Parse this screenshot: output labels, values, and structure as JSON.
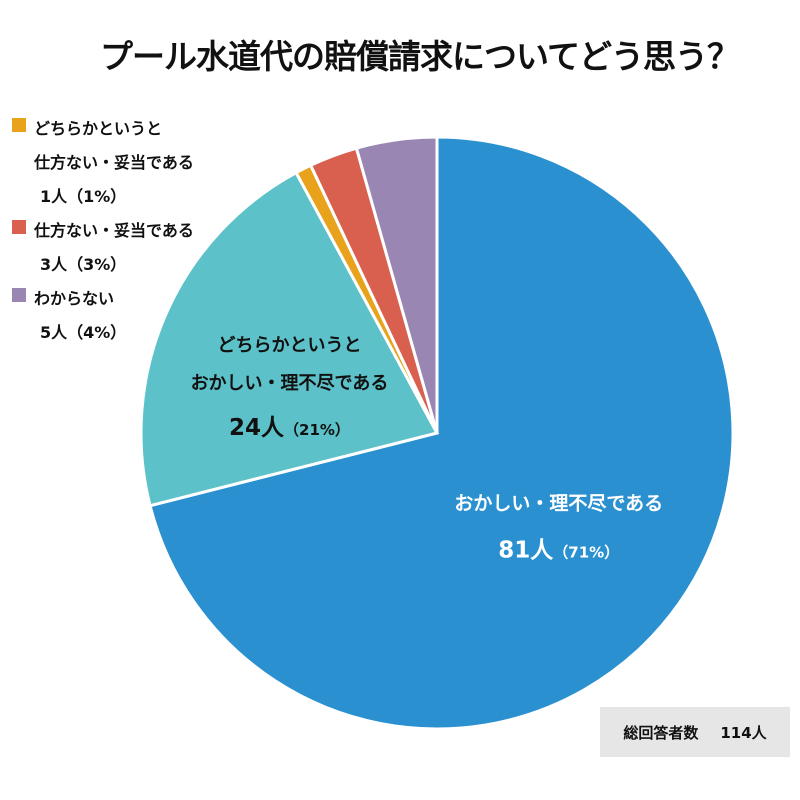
{
  "chart_data": {
    "type": "pie",
    "title": "プール水道代の賠償請求についてどう思う？",
    "slices": [
      {
        "label": "おかしい・理不尽である",
        "count_text": "81人",
        "percent_text": "（71%）",
        "value": 81,
        "percent": 71,
        "color": "#2b90d0"
      },
      {
        "label": "どちらかというとおかしい・理不尽である",
        "label_lines": [
          "どちらかというと",
          "おかしい・理不尽である"
        ],
        "count_text": "24人",
        "percent_text": "（21%）",
        "value": 24,
        "percent": 21,
        "color": "#5cc1c8"
      },
      {
        "label": "どちらかというと仕方ない・妥当である",
        "count_text": "1人",
        "percent_text": "（1%）",
        "value": 1,
        "percent": 1,
        "color": "#e8a21c"
      },
      {
        "label": "仕方ない・妥当である",
        "count_text": "3人",
        "percent_text": "（3%）",
        "value": 3,
        "percent": 3,
        "color": "#d9604f"
      },
      {
        "label": "わからない",
        "count_text": "5人",
        "percent_text": "（4%）",
        "value": 5,
        "percent": 4,
        "color": "#9a86b3"
      }
    ],
    "total": {
      "label": "総回答者数",
      "value_text": "114人",
      "value": 114
    },
    "legend_placement": "top-left",
    "legend": [
      {
        "lines": [
          "どちらかというと",
          "仕方ない・妥当である"
        ],
        "count": "1人（1%）",
        "color": "#e8a21c"
      },
      {
        "lines": [
          "仕方ない・妥当である"
        ],
        "count": "3人（3%）",
        "color": "#d9604f"
      },
      {
        "lines": [
          "わからない"
        ],
        "count": "5人（4%）",
        "color": "#9a86b3"
      }
    ]
  }
}
